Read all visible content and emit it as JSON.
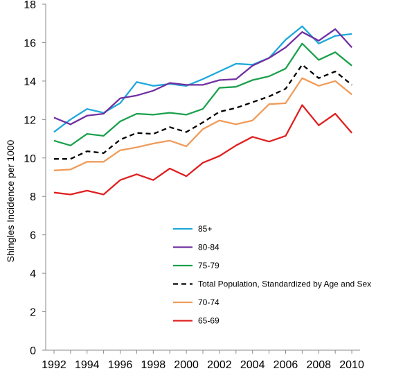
{
  "chart_data": {
    "type": "line",
    "title": "",
    "xlabel": "",
    "ylabel": "Shingles Incidence per 1000",
    "xlim": [
      1991.5,
      2010.5
    ],
    "ylim": [
      0,
      18
    ],
    "x": [
      1992,
      1993,
      1994,
      1995,
      1996,
      1997,
      1998,
      1999,
      2000,
      2001,
      2002,
      2003,
      2004,
      2005,
      2006,
      2007,
      2008,
      2009,
      2010
    ],
    "x_ticks": [
      1992,
      1994,
      1996,
      1998,
      2000,
      2002,
      2004,
      2006,
      2008,
      2010
    ],
    "y_ticks": [
      0,
      2,
      4,
      6,
      8,
      10,
      12,
      14,
      16,
      18
    ],
    "grid": false,
    "legend_position": "center-left",
    "series": [
      {
        "name": "85+",
        "color": "#1ea8dc",
        "dash": "solid",
        "values": [
          11.35,
          12.0,
          12.55,
          12.35,
          12.85,
          13.95,
          13.75,
          13.85,
          13.75,
          14.1,
          14.5,
          14.9,
          14.85,
          15.2,
          16.15,
          16.85,
          15.95,
          16.35,
          16.45
        ]
      },
      {
        "name": "80-84",
        "color": "#7030a0",
        "dash": "solid",
        "values": [
          12.1,
          11.75,
          12.2,
          12.3,
          13.1,
          13.25,
          13.5,
          13.9,
          13.8,
          13.8,
          14.05,
          14.1,
          14.8,
          15.2,
          15.75,
          16.55,
          16.1,
          16.7,
          15.75
        ]
      },
      {
        "name": "75-79",
        "color": "#1aa14b",
        "dash": "solid",
        "values": [
          10.9,
          10.65,
          11.25,
          11.15,
          11.9,
          12.3,
          12.25,
          12.35,
          12.25,
          12.55,
          13.65,
          13.7,
          14.05,
          14.25,
          14.65,
          15.95,
          15.1,
          15.5,
          14.8
        ]
      },
      {
        "name": "Total Population, Standardized by Age and Sex",
        "color": "#000000",
        "dash": "dashed",
        "values": [
          9.95,
          9.95,
          10.35,
          10.25,
          10.95,
          11.3,
          11.25,
          11.6,
          11.35,
          11.85,
          12.4,
          12.6,
          12.9,
          13.2,
          13.6,
          14.85,
          14.15,
          14.5,
          13.8
        ]
      },
      {
        "name": "70-74",
        "color": "#f09c5a",
        "dash": "solid",
        "values": [
          9.35,
          9.4,
          9.8,
          9.8,
          10.4,
          10.55,
          10.75,
          10.9,
          10.6,
          11.5,
          11.95,
          11.75,
          11.95,
          12.8,
          12.85,
          14.15,
          13.75,
          14.0,
          13.3
        ]
      },
      {
        "name": "65-69",
        "color": "#e02020",
        "dash": "solid",
        "values": [
          8.2,
          8.1,
          8.3,
          8.1,
          8.85,
          9.15,
          8.85,
          9.45,
          9.05,
          9.75,
          10.1,
          10.65,
          11.1,
          10.85,
          11.15,
          12.75,
          11.7,
          12.3,
          11.3
        ]
      }
    ]
  }
}
